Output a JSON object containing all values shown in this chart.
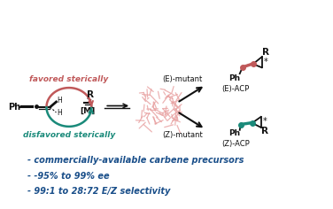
{
  "bg_color": "#ffffff",
  "text_blue": "#1a4f8a",
  "text_red": "#c0595a",
  "text_teal": "#1a8a7a",
  "text_black": "#111111",
  "enzyme_color": "#e8a0a0",
  "bullet_lines": [
    "- commercially-available carbene precursors",
    "- -95% to 99% ee",
    "- 99:1 to 28:72 E/Z selectivity"
  ],
  "favored_label": "favored sterically",
  "disfavored_label": "disfavored sterically",
  "e_mutant": "(E)-mutant",
  "z_mutant": "(Z)-mutant",
  "e_acp": "(E)-ACP",
  "z_acp": "(Z)-ACP",
  "ph_label": "Ph",
  "r_label": "R",
  "m_label": "[M]",
  "h_label": "H",
  "star_label": "*"
}
